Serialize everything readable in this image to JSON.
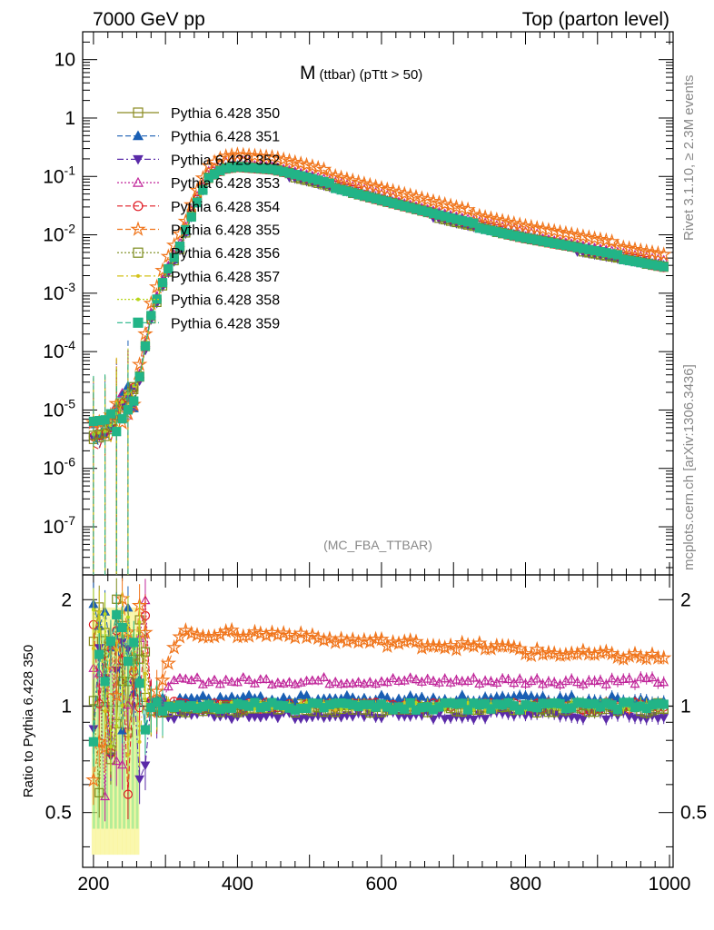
{
  "header": {
    "left": "7000 GeV pp",
    "right": "Top (parton level)"
  },
  "side_labels": {
    "rivet": "Rivet 3.1.10, ≥ 2.3M events",
    "mcplots": "mcplots.cern.ch [arXiv:1306.3436]"
  },
  "plot_title": {
    "main": "M",
    "sub": "(ttbar) (pTtt > 50)"
  },
  "analysis_tag": "(MC_FBA_TTBAR)",
  "ratio_ylabel": "Ratio to Pythia 6.428 350",
  "chart_data": [
    {
      "type": "line",
      "panel": "main",
      "yscale": "log",
      "xlim": [
        185,
        1005
      ],
      "ylim": [
        1.5e-08,
        30
      ],
      "ytick_labels": [
        "10^-7",
        "10^-6",
        "10^-5",
        "10^-4",
        "10^-3",
        "10^-2",
        "10^-1",
        "1",
        "10"
      ],
      "legend_placement": "top-left",
      "series": [
        {
          "name": "Pythia 6.428 350",
          "color": "#8a8a20",
          "marker": "open-square",
          "dash": "solid",
          "scale": 1.0
        },
        {
          "name": "Pythia 6.428 351",
          "color": "#1a5fb4",
          "marker": "filled-triangle-up",
          "dash": "dashed",
          "scale": 1.05
        },
        {
          "name": "Pythia 6.428 352",
          "color": "#5a2aa8",
          "marker": "filled-triangle-down",
          "dash": "dashdot",
          "scale": 0.93
        },
        {
          "name": "Pythia 6.428 353",
          "color": "#c0269a",
          "marker": "open-triangle-up",
          "dash": "dotted",
          "scale": 1.2
        },
        {
          "name": "Pythia 6.428 354",
          "color": "#e01b24",
          "marker": "open-circle",
          "dash": "dashed",
          "scale": 1.0
        },
        {
          "name": "Pythia 6.428 355",
          "color": "#f0741a",
          "marker": "open-star",
          "dash": "dashed",
          "scale": 1.6
        },
        {
          "name": "Pythia 6.428 356",
          "color": "#7a8a1a",
          "marker": "open-square",
          "dash": "dotted",
          "scale": 0.98
        },
        {
          "name": "Pythia 6.428 357",
          "color": "#d4c21a",
          "marker": "small-filled",
          "dash": "dashdot",
          "scale": 1.0
        },
        {
          "name": "Pythia 6.428 358",
          "color": "#b8d61a",
          "marker": "small-filled",
          "dash": "dotted",
          "scale": 1.0
        },
        {
          "name": "Pythia 6.428 359",
          "color": "#22b487",
          "marker": "filled-square",
          "dash": "dashed",
          "scale": 1.0
        }
      ],
      "reference_shape": {
        "x": [
          200,
          220,
          240,
          260,
          280,
          300,
          320,
          340,
          360,
          380,
          400,
          450,
          500,
          600,
          700,
          800,
          900,
          1000
        ],
        "y": [
          3.5e-06,
          3.5e-06,
          1e-05,
          2e-05,
          0.0004,
          0.002,
          0.006,
          0.03,
          0.1,
          0.14,
          0.15,
          0.13,
          0.09,
          0.04,
          0.018,
          0.009,
          0.005,
          0.0028
        ]
      }
    },
    {
      "type": "line",
      "panel": "ratio",
      "xlim": [
        185,
        1005
      ],
      "ylim": [
        0.35,
        2.35
      ],
      "xticks": [
        200,
        400,
        600,
        800,
        1000
      ],
      "yticks": [
        0.5,
        1,
        2
      ],
      "reference_line": 1.0,
      "series_ratios": [
        {
          "name": "Pythia 6.428 350",
          "plateau": 1.0
        },
        {
          "name": "Pythia 6.428 351",
          "plateau": 1.05
        },
        {
          "name": "Pythia 6.428 352",
          "plateau": 0.94
        },
        {
          "name": "Pythia 6.428 353",
          "plateau": 1.18
        },
        {
          "name": "Pythia 6.428 354",
          "plateau": 1.0
        },
        {
          "name": "Pythia 6.428 355",
          "plateau": 1.55
        },
        {
          "name": "Pythia 6.428 356",
          "plateau": 0.98
        },
        {
          "name": "Pythia 6.428 357",
          "plateau": 1.0
        },
        {
          "name": "Pythia 6.428 358",
          "plateau": 1.0
        },
        {
          "name": "Pythia 6.428 359",
          "plateau": 1.0
        }
      ]
    }
  ]
}
